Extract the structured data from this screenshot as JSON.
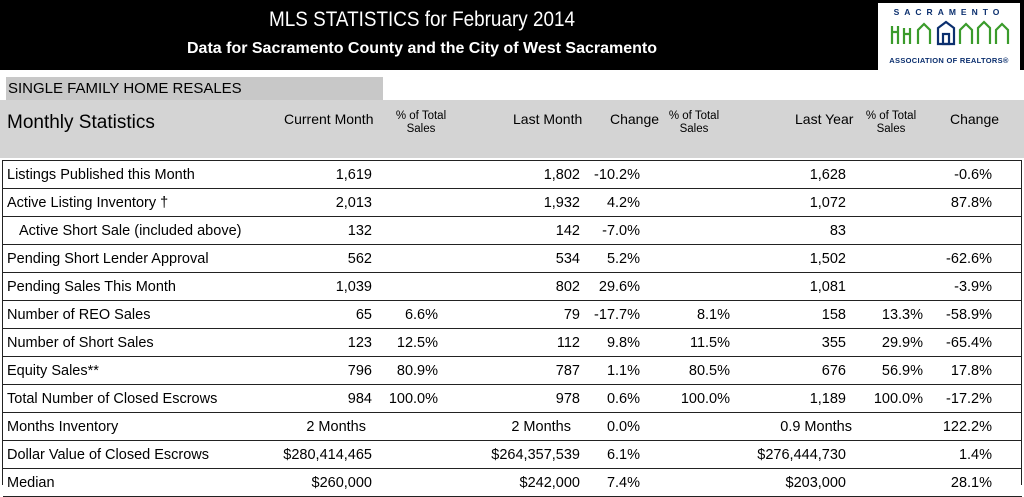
{
  "header": {
    "title": "MLS STATISTICS for February 2014",
    "subtitle": "Data for Sacramento County and the City of West Sacramento"
  },
  "logo": {
    "name": "SACRAMENTO",
    "tagline": "ASSOCIATION OF REALTORS®",
    "colors": {
      "green": "#3a9b2b",
      "blue": "#0b2f6e"
    }
  },
  "section": "SINGLE FAMILY HOME RESALES",
  "columns": {
    "stats_heading": "Monthly Statistics",
    "current_month": "Current Month",
    "pct_total_1": "% of  Total",
    "pct_total_1b": "Sales",
    "last_month": "Last Month",
    "change_1": "Change",
    "pct_total_2": "% of  Total",
    "pct_total_2b": "Sales",
    "last_year": "Last Year",
    "pct_total_3": "% of  Total",
    "pct_total_3b": "Sales",
    "change_2": "Change"
  },
  "rows": [
    {
      "label": "Listings Published this Month",
      "indent": false,
      "cur": "1,619",
      "cur_pct": "",
      "last": "1,802",
      "chg1": "-10.2%",
      "last_pct": "",
      "ly": "1,628",
      "ly_pct": "",
      "chg2": "-0.6%"
    },
    {
      "label": "Active Listing Inventory †",
      "indent": false,
      "cur": "2,013",
      "cur_pct": "",
      "last": "1,932",
      "chg1": "4.2%",
      "last_pct": "",
      "ly": "1,072",
      "ly_pct": "",
      "chg2": "87.8%"
    },
    {
      "label": "Active Short Sale (included above)",
      "indent": true,
      "cur": "132",
      "cur_pct": "",
      "last": "142",
      "chg1": "-7.0%",
      "last_pct": "",
      "ly": "83",
      "ly_pct": "",
      "chg2": ""
    },
    {
      "label": "Pending Short Lender Approval",
      "indent": false,
      "cur": "562",
      "cur_pct": "",
      "last": "534",
      "chg1": "5.2%",
      "last_pct": "",
      "ly": "1,502",
      "ly_pct": "",
      "chg2": "-62.6%"
    },
    {
      "label": "Pending Sales This Month",
      "indent": false,
      "cur": "1,039",
      "cur_pct": "",
      "last": "802",
      "chg1": "29.6%",
      "last_pct": "",
      "ly": "1,081",
      "ly_pct": "",
      "chg2": "-3.9%"
    },
    {
      "label": "Number of REO Sales",
      "indent": false,
      "cur": "65",
      "cur_pct": "6.6%",
      "last": "79",
      "chg1": "-17.7%",
      "last_pct": "8.1%",
      "ly": "158",
      "ly_pct": "13.3%",
      "chg2": "-58.9%"
    },
    {
      "label": "Number of Short Sales",
      "indent": false,
      "cur": "123",
      "cur_pct": "12.5%",
      "last": "112",
      "chg1": "9.8%",
      "last_pct": "11.5%",
      "ly": "355",
      "ly_pct": "29.9%",
      "chg2": "-65.4%"
    },
    {
      "label": "Equity Sales**",
      "indent": false,
      "cur": "796",
      "cur_pct": "80.9%",
      "last": "787",
      "chg1": "1.1%",
      "last_pct": "80.5%",
      "ly": "676",
      "ly_pct": "56.9%",
      "chg2": "17.8%"
    },
    {
      "label": "Total Number of Closed Escrows",
      "indent": false,
      "cur": "984",
      "cur_pct": "100.0%",
      "last": "978",
      "chg1": "0.6%",
      "last_pct": "100.0%",
      "ly": "1,189",
      "ly_pct": "100.0%",
      "chg2": "-17.2%"
    },
    {
      "label": "Months Inventory",
      "indent": false,
      "cur": "2 Months",
      "cur_pct": "",
      "last": "2 Months",
      "chg1": "0.0%",
      "last_pct": "",
      "ly": "0.9 Months",
      "ly_pct": "",
      "chg2": "122.2%"
    },
    {
      "label": "Dollar Value of Closed Escrows",
      "indent": false,
      "cur": "$280,414,465",
      "cur_pct": "",
      "last": "$264,357,539",
      "chg1": "6.1%",
      "last_pct": "",
      "ly": "$276,444,730",
      "ly_pct": "",
      "chg2": "1.4%"
    },
    {
      "label": "Median",
      "indent": false,
      "cur": "$260,000",
      "cur_pct": "",
      "last": "$242,000",
      "chg1": "7.4%",
      "last_pct": "",
      "ly": "$203,000",
      "ly_pct": "",
      "chg2": "28.1%"
    }
  ]
}
